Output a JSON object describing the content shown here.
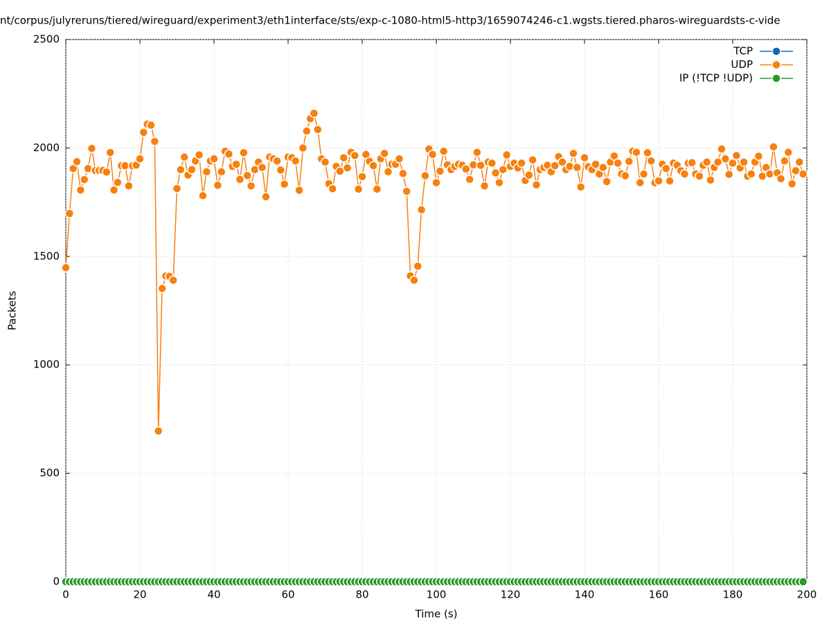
{
  "chart_data": {
    "type": "line",
    "title": "nt/corpus/julyreruns/tiered/wireguard/experiment3/eth1interface/sts/exp-c-1080-html5-http3/1659074246-c1.wgsts.tiered.pharos-wireguardsts-c-vide",
    "x_label": "Time (s)",
    "y_label": "Packets",
    "xlim": [
      0,
      200
    ],
    "xticks": [
      0,
      20,
      40,
      60,
      80,
      100,
      120,
      140,
      160,
      180,
      200
    ],
    "ylim": [
      0,
      2500
    ],
    "yticks": [
      0,
      500,
      1000,
      1500,
      2000,
      2500
    ],
    "grid": true,
    "legend": "top-right",
    "x": [
      0,
      1,
      2,
      3,
      4,
      5,
      6,
      7,
      8,
      9,
      10,
      11,
      12,
      13,
      14,
      15,
      16,
      17,
      18,
      19,
      20,
      21,
      22,
      23,
      24,
      25,
      26,
      27,
      28,
      29,
      30,
      31,
      32,
      33,
      34,
      35,
      36,
      37,
      38,
      39,
      40,
      41,
      42,
      43,
      44,
      45,
      46,
      47,
      48,
      49,
      50,
      51,
      52,
      53,
      54,
      55,
      56,
      57,
      58,
      59,
      60,
      61,
      62,
      63,
      64,
      65,
      66,
      67,
      68,
      69,
      70,
      71,
      72,
      73,
      74,
      75,
      76,
      77,
      78,
      79,
      80,
      81,
      82,
      83,
      84,
      85,
      86,
      87,
      88,
      89,
      90,
      91,
      92,
      93,
      94,
      95,
      96,
      97,
      98,
      99,
      100,
      101,
      102,
      103,
      104,
      105,
      106,
      107,
      108,
      109,
      110,
      111,
      112,
      113,
      114,
      115,
      116,
      117,
      118,
      119,
      120,
      121,
      122,
      123,
      124,
      125,
      126,
      127,
      128,
      129,
      130,
      131,
      132,
      133,
      134,
      135,
      136,
      137,
      138,
      139,
      140,
      141,
      142,
      143,
      144,
      145,
      146,
      147,
      148,
      149,
      150,
      151,
      152,
      153,
      154,
      155,
      156,
      157,
      158,
      159,
      160,
      161,
      162,
      163,
      164,
      165,
      166,
      167,
      168,
      169,
      170,
      171,
      172,
      173,
      174,
      175,
      176,
      177,
      178,
      179,
      180,
      181,
      182,
      183,
      184,
      185,
      186,
      187,
      188,
      189,
      190,
      191,
      192,
      193,
      194,
      195,
      196,
      197,
      198,
      199
    ],
    "series": [
      {
        "name": "TCP",
        "color": "#1565b5",
        "values": [
          0,
          0,
          0,
          0,
          0,
          0,
          0,
          0,
          0,
          0,
          0,
          0,
          0,
          0,
          0,
          0,
          0,
          0,
          0,
          0,
          0,
          0,
          0,
          0,
          0,
          0,
          0,
          0,
          0,
          0,
          0,
          0,
          0,
          0,
          0,
          0,
          0,
          0,
          0,
          0,
          0,
          0,
          0,
          0,
          0,
          0,
          0,
          0,
          0,
          0,
          0,
          0,
          0,
          0,
          0,
          0,
          0,
          0,
          0,
          0,
          0,
          0,
          0,
          0,
          0,
          0,
          0,
          0,
          0,
          0,
          0,
          0,
          0,
          0,
          0,
          0,
          0,
          0,
          0,
          0,
          0,
          0,
          0,
          0,
          0,
          0,
          0,
          0,
          0,
          0,
          0,
          0,
          0,
          0,
          0,
          0,
          0,
          0,
          0,
          0,
          0,
          0,
          0,
          0,
          0,
          0,
          0,
          0,
          0,
          0,
          0,
          0,
          0,
          0,
          0,
          0,
          0,
          0,
          0,
          0,
          0,
          0,
          0,
          0,
          0,
          0,
          0,
          0,
          0,
          0,
          0,
          0,
          0,
          0,
          0,
          0,
          0,
          0,
          0,
          0,
          0,
          0,
          0,
          0,
          0,
          0,
          0,
          0,
          0,
          0,
          0,
          0,
          0,
          0,
          0,
          0,
          0,
          0,
          0,
          0,
          0,
          0,
          0,
          0,
          0,
          0,
          0,
          0,
          0,
          0,
          0,
          0,
          0,
          0,
          0,
          0,
          0,
          0,
          0,
          0,
          0,
          0,
          0,
          0,
          0,
          0,
          0,
          0,
          0,
          0,
          0,
          0,
          0,
          0,
          0,
          0,
          0,
          0,
          0,
          0
        ]
      },
      {
        "name": "UDP",
        "color": "#f7800f",
        "values": [
          1448,
          1698,
          1905,
          1937,
          1806,
          1854,
          1905,
          1998,
          1896,
          1896,
          1896,
          1889,
          1979,
          1806,
          1841,
          1918,
          1918,
          1825,
          1918,
          1921,
          1950,
          2072,
          2110,
          2105,
          2030,
          695,
          1352,
          1410,
          1408,
          1390,
          1813,
          1900,
          1958,
          1875,
          1900,
          1940,
          1968,
          1780,
          1890,
          1940,
          1950,
          1828,
          1890,
          1985,
          1972,
          1915,
          1925,
          1855,
          1978,
          1873,
          1825,
          1900,
          1935,
          1910,
          1775,
          1958,
          1950,
          1940,
          1898,
          1833,
          1958,
          1955,
          1940,
          1805,
          2000,
          2078,
          2135,
          2160,
          2085,
          1950,
          1935,
          1835,
          1812,
          1915,
          1893,
          1955,
          1908,
          1980,
          1965,
          1810,
          1868,
          1970,
          1938,
          1918,
          1810,
          1950,
          1975,
          1890,
          1925,
          1925,
          1950,
          1882,
          1800,
          1410,
          1390,
          1455,
          1715,
          1872,
          1995,
          1970,
          1840,
          1893,
          1985,
          1922,
          1900,
          1915,
          1925,
          1920,
          1903,
          1855,
          1922,
          1980,
          1920,
          1825,
          1935,
          1930,
          1885,
          1840,
          1900,
          1968,
          1915,
          1930,
          1908,
          1930,
          1850,
          1875,
          1945,
          1830,
          1900,
          1910,
          1920,
          1890,
          1918,
          1960,
          1935,
          1900,
          1915,
          1975,
          1910,
          1820,
          1955,
          1913,
          1900,
          1925,
          1880,
          1910,
          1845,
          1935,
          1963,
          1930,
          1880,
          1872,
          1938,
          1985,
          1980,
          1840,
          1880,
          1978,
          1940,
          1840,
          1848,
          1925,
          1905,
          1848,
          1930,
          1920,
          1895,
          1880,
          1930,
          1932,
          1880,
          1870,
          1920,
          1935,
          1852,
          1910,
          1935,
          1995,
          1950,
          1878,
          1930,
          1965,
          1908,
          1935,
          1870,
          1880,
          1935,
          1962,
          1870,
          1910,
          1880,
          2005,
          1885,
          1858,
          1940,
          1980,
          1835,
          1895,
          1935,
          1880
        ]
      },
      {
        "name": "IP (!TCP  !UDP)",
        "color": "#2a9a2a",
        "values": [
          0,
          0,
          0,
          0,
          0,
          0,
          0,
          0,
          0,
          0,
          0,
          0,
          0,
          0,
          0,
          0,
          0,
          0,
          0,
          0,
          0,
          0,
          0,
          0,
          0,
          0,
          0,
          0,
          0,
          0,
          0,
          0,
          0,
          0,
          0,
          0,
          0,
          0,
          0,
          0,
          0,
          0,
          0,
          0,
          0,
          0,
          0,
          0,
          0,
          0,
          0,
          0,
          0,
          0,
          0,
          0,
          0,
          0,
          0,
          0,
          0,
          0,
          0,
          0,
          0,
          0,
          0,
          0,
          0,
          0,
          0,
          0,
          0,
          0,
          0,
          0,
          0,
          0,
          0,
          0,
          0,
          0,
          0,
          0,
          0,
          0,
          0,
          0,
          0,
          0,
          0,
          0,
          0,
          0,
          0,
          0,
          0,
          0,
          0,
          0,
          0,
          0,
          0,
          0,
          0,
          0,
          0,
          0,
          0,
          0,
          0,
          0,
          0,
          0,
          0,
          0,
          0,
          0,
          0,
          0,
          0,
          0,
          0,
          0,
          0,
          0,
          0,
          0,
          0,
          0,
          0,
          0,
          0,
          0,
          0,
          0,
          0,
          0,
          0,
          0,
          0,
          0,
          0,
          0,
          0,
          0,
          0,
          0,
          0,
          0,
          0,
          0,
          0,
          0,
          0,
          0,
          0,
          0,
          0,
          0,
          0,
          0,
          0,
          0,
          0,
          0,
          0,
          0,
          0,
          0,
          0,
          0,
          0,
          0,
          0,
          0,
          0,
          0,
          0,
          0,
          0,
          0,
          0,
          0,
          0,
          0,
          0,
          0,
          0,
          0,
          0,
          0,
          0,
          0,
          0,
          0,
          0,
          0,
          0,
          0
        ]
      }
    ]
  }
}
